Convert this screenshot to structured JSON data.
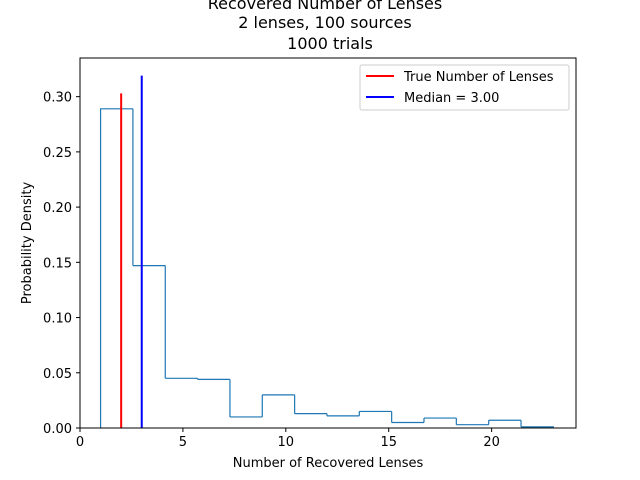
{
  "chart_data": {
    "type": "histogram",
    "title_lines": [
      "Recovered Number of Lenses",
      "2 lenses, 100 sources",
      "1000 trials"
    ],
    "xlabel": "Number of Recovered Lenses",
    "ylabel": "Probability Density",
    "xlim": [
      0,
      24.1
    ],
    "ylim": [
      0,
      0.335
    ],
    "xticks": [
      0,
      5,
      10,
      15,
      20
    ],
    "yticks": [
      0.0,
      0.05,
      0.1,
      0.15,
      0.2,
      0.25,
      0.3
    ],
    "bin_edges": [
      1.0,
      2.571,
      4.143,
      5.714,
      7.286,
      8.857,
      10.429,
      12.0,
      13.571,
      15.143,
      16.714,
      18.286,
      19.857,
      21.429,
      23.0
    ],
    "densities": [
      0.289,
      0.147,
      0.045,
      0.044,
      0.01,
      0.03,
      0.013,
      0.011,
      0.015,
      0.005,
      0.009,
      0.003,
      0.007,
      0.001
    ],
    "histogram_color": "#1f77b4",
    "vlines": [
      {
        "label": "True Number of Lenses",
        "x": 2,
        "ymax": 0.303,
        "color": "#ff0000"
      },
      {
        "label": "Median = 3.00",
        "x": 3,
        "ymax": 0.319,
        "color": "#0000ff"
      }
    ],
    "legend_position": "top-right",
    "grid": false
  }
}
